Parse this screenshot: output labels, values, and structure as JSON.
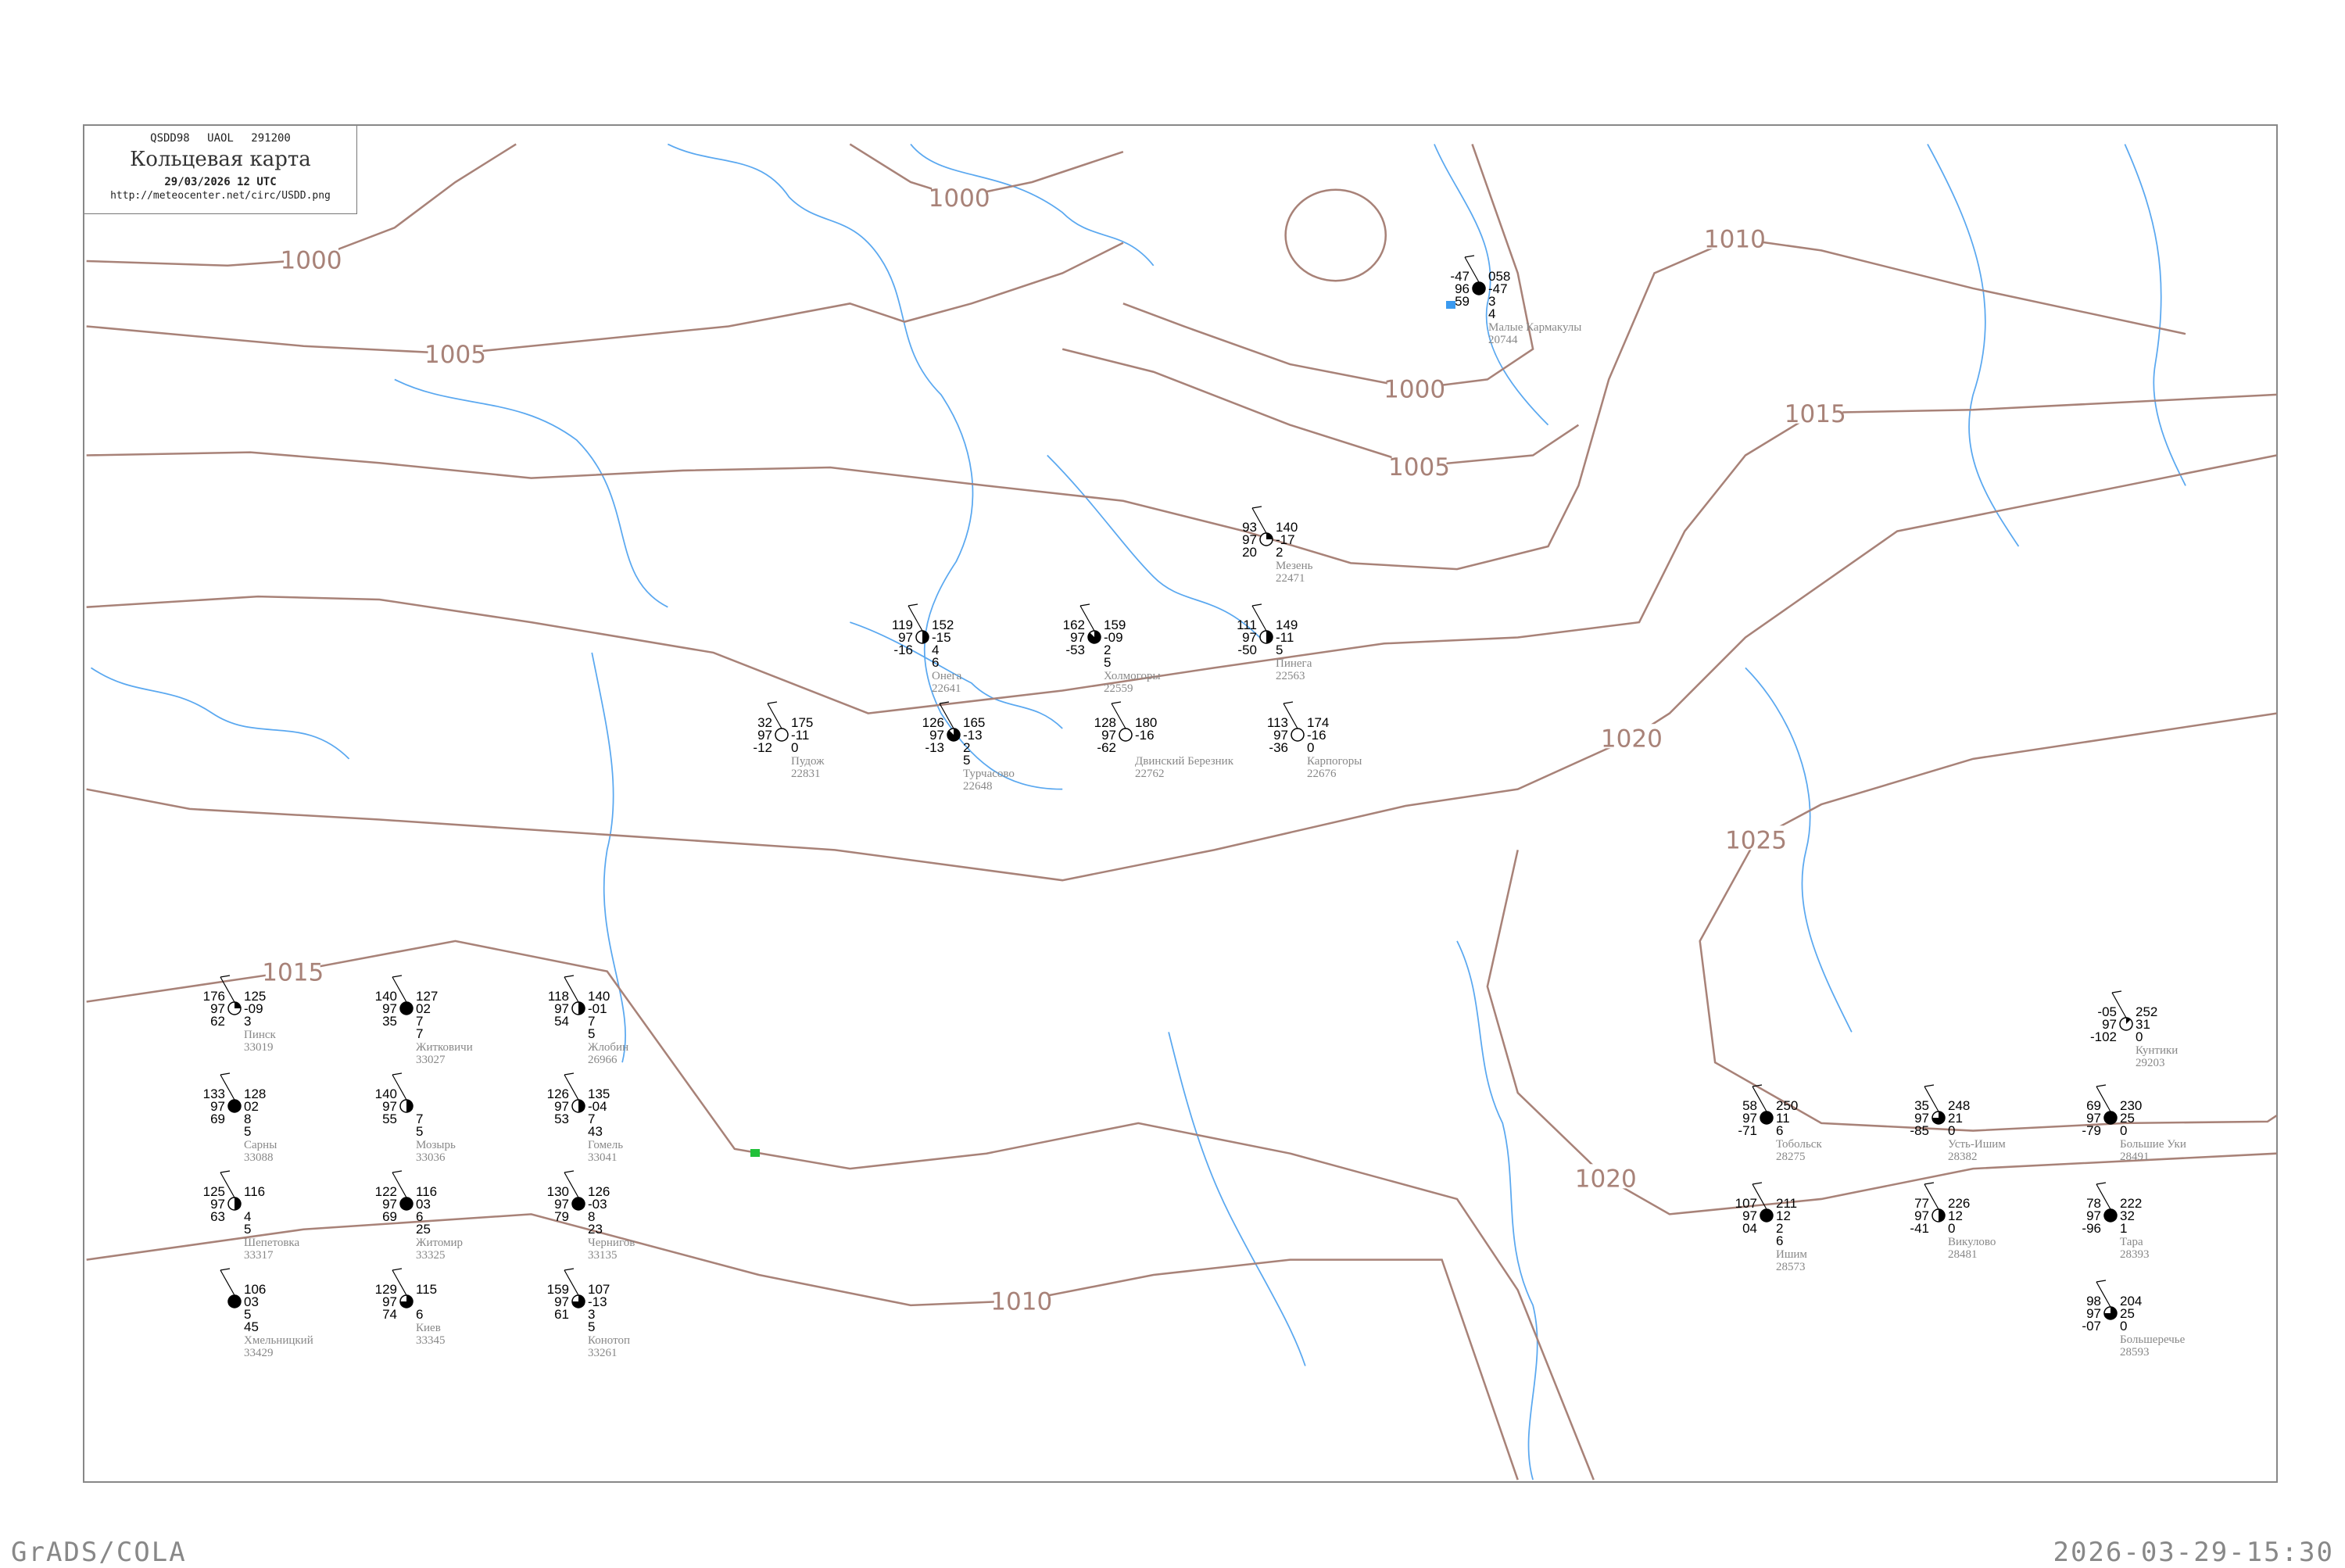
{
  "header": {
    "code_line": "QSDD98 UAOL 291200",
    "title": "Кольцевая карта",
    "datetime": "29/03/2026 12 UTC",
    "url": "http://meteocenter.net/circ/USDD.png"
  },
  "footer": {
    "left": "GrADS/COLA",
    "right": "2026-03-29-15:30"
  },
  "colors": {
    "isobar": "#a88278",
    "coastline": "#5aa8f0",
    "station_text": "#000000",
    "station_name": "#888888",
    "marker_green": "#22c03a",
    "marker_blue": "#3a9af0"
  },
  "isobars": [
    {
      "label": "1000"
    },
    {
      "label": "1005"
    },
    {
      "label": "1000"
    },
    {
      "label": "1005"
    },
    {
      "label": "1010"
    },
    {
      "label": "1015"
    },
    {
      "label": "1020"
    },
    {
      "label": "1025"
    },
    {
      "label": "1020"
    },
    {
      "label": "1015"
    },
    {
      "label": "1010"
    },
    {
      "label": "1000"
    }
  ],
  "stations": [
    {
      "name": "Онега",
      "id": "22641",
      "t": "119",
      "p": "152",
      "vis": "97",
      "dp": "-15",
      "td": "-16",
      "extra": "4 6",
      "cover": 0.5
    },
    {
      "name": "Турчасово",
      "id": "22648",
      "t": "126",
      "p": "165",
      "vis": "97",
      "dp": "-13",
      "td": "-13",
      "extra": "2 5",
      "cover": 0.875
    },
    {
      "name": "Холмогоры",
      "id": "22559",
      "t": "162",
      "p": "159",
      "vis": "97",
      "dp": "-09",
      "td": "-53",
      "extra": "2 5",
      "cover": 0.875
    },
    {
      "name": "Пинега",
      "id": "22563",
      "t": "111",
      "p": "149",
      "vis": "97",
      "dp": "-11",
      "td": "-50",
      "extra": "5",
      "cover": 0.5
    },
    {
      "name": "Мезень",
      "id": "22471",
      "t": "93",
      "p": "140",
      "vis": "97",
      "dp": "-17",
      "td": "20",
      "extra": "2",
      "cover": 0.25
    },
    {
      "name": "Карпогоры",
      "id": "22676",
      "t": "113",
      "p": "174",
      "vis": "97",
      "dp": "-16",
      "td": "-36",
      "extra": "0",
      "cover": 0
    },
    {
      "name": "Пудож",
      "id": "22831",
      "t": "32",
      "p": "175",
      "vis": "97",
      "dp": "-11",
      "td": "-12",
      "extra": "0",
      "cover": 0
    },
    {
      "name": "Двинский Березник",
      "id": "22762",
      "t": "128",
      "p": "180",
      "vis": "97",
      "dp": "-16",
      "td": "-62",
      "extra": "",
      "cover": 0
    },
    {
      "name": "Малые Кармакулы",
      "id": "20744",
      "t": "-47",
      "p": "058",
      "vis": "96",
      "dp": "-47",
      "td": "-59",
      "extra": "3 4",
      "cover": 1
    },
    {
      "name": "Пинск",
      "id": "33019",
      "t": "176",
      "p": "125",
      "vis": "97",
      "dp": "-09",
      "td": "62",
      "extra": "3",
      "cover": 0.25
    },
    {
      "name": "Сарны",
      "id": "33088",
      "t": "133",
      "p": "128",
      "vis": "97",
      "dp": "02",
      "td": "69",
      "extra": "8 5",
      "cover": 1
    },
    {
      "name": "Житковичи",
      "id": "33027",
      "t": "140",
      "p": "127",
      "vis": "97",
      "dp": "02",
      "td": "35",
      "extra": "7 7",
      "cover": 1
    },
    {
      "name": "Мозырь",
      "id": "33036",
      "t": "140",
      "p": "",
      "vis": "97",
      "dp": "",
      "td": "55",
      "extra": "7 5",
      "cover": 0.5
    },
    {
      "name": "Гомель",
      "id": "33041",
      "t": "126",
      "p": "135",
      "vis": "97",
      "dp": "-04",
      "td": "53",
      "extra": "7 43",
      "cover": 0.5
    },
    {
      "name": "Жлобин",
      "id": "26966",
      "t": "118",
      "p": "140",
      "vis": "97",
      "dp": "-01",
      "td": "54",
      "extra": "7 5",
      "cover": 0.5
    },
    {
      "name": "Чернигов",
      "id": "33135",
      "t": "130",
      "p": "126",
      "vis": "97",
      "dp": "-03",
      "td": "79",
      "extra": "8 23",
      "cover": 1
    },
    {
      "name": "Житомир",
      "id": "33325",
      "t": "122",
      "p": "116",
      "vis": "97",
      "dp": "03",
      "td": "69",
      "extra": "6 25",
      "cover": 1
    },
    {
      "name": "Киев",
      "id": "33345",
      "t": "129",
      "p": "115",
      "vis": "97",
      "dp": "",
      "td": "74",
      "extra": "6",
      "cover": 0.75
    },
    {
      "name": "Конотоп",
      "id": "33261",
      "t": "159",
      "p": "107",
      "vis": "97",
      "dp": "-13",
      "td": "61",
      "extra": "3 5",
      "cover": 0.75
    },
    {
      "name": "Шепетовка",
      "id": "33317",
      "t": "125",
      "p": "116",
      "vis": "97",
      "dp": "",
      "td": "63",
      "extra": "4 5",
      "cover": 0.5
    },
    {
      "name": "Хмельницкий",
      "id": "33429",
      "t": "",
      "p": "106",
      "vis": "",
      "dp": "03",
      "td": "",
      "extra": "5 45",
      "cover": 1
    },
    {
      "name": "Тобольск",
      "id": "28275",
      "t": "58",
      "p": "250",
      "vis": "97",
      "dp": "11",
      "td": "-71",
      "extra": "6",
      "cover": 1
    },
    {
      "name": "Усть-Ишим",
      "id": "28382",
      "t": "35",
      "p": "248",
      "vis": "97",
      "dp": "21",
      "td": "-85",
      "extra": "0",
      "cover": 0.75
    },
    {
      "name": "Викулово",
      "id": "28481",
      "t": "77",
      "p": "226",
      "vis": "97",
      "dp": "12",
      "td": "-41",
      "extra": "0",
      "cover": 0.5
    },
    {
      "name": "Большие Уки",
      "id": "28491",
      "t": "69",
      "p": "230",
      "vis": "97",
      "dp": "25",
      "td": "-79",
      "extra": "0",
      "cover": 1
    },
    {
      "name": "Тара",
      "id": "28393",
      "t": "78",
      "p": "222",
      "vis": "97",
      "dp": "32",
      "td": "-96",
      "extra": "1",
      "cover": 1
    },
    {
      "name": "Большеречье",
      "id": "28593",
      "t": "98",
      "p": "204",
      "vis": "97",
      "dp": "25",
      "td": "-07",
      "extra": "0",
      "cover": 0.75
    },
    {
      "name": "Ишим",
      "id": "28573",
      "t": "107",
      "p": "211",
      "vis": "97",
      "dp": "12",
      "td": "04",
      "extra": "2 6",
      "cover": 1
    },
    {
      "name": "Кунтики",
      "id": "29203",
      "t": "-05",
      "p": "252",
      "vis": "97",
      "dp": "31",
      "td": "-102",
      "extra": "0",
      "cover": 0.125
    }
  ]
}
